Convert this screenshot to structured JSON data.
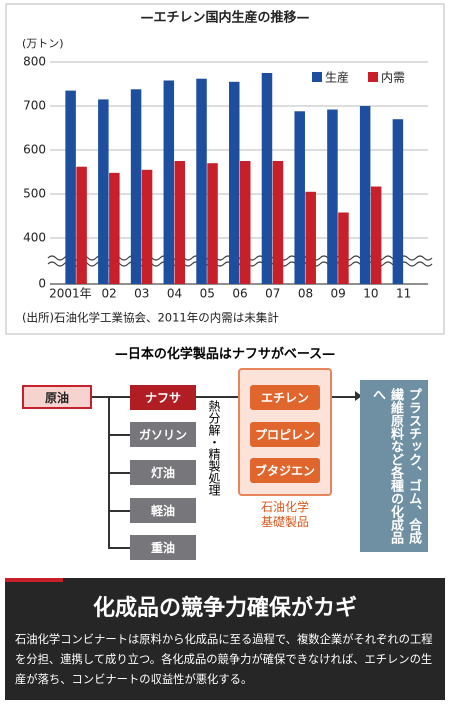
{
  "chart_data": {
    "type": "bar",
    "title": "—エチレン国内生産の推移—",
    "y_label": "(万トン)",
    "source": "(出所)石油化学工業協会、2011年の内需は未集計",
    "categories": [
      "2001年",
      "02",
      "03",
      "04",
      "05",
      "06",
      "07",
      "08",
      "09",
      "10",
      "11"
    ],
    "series": [
      {
        "name": "生産",
        "color": "#1d4f9e",
        "values": [
          735,
          715,
          738,
          758,
          762,
          755,
          775,
          688,
          692,
          700,
          670
        ]
      },
      {
        "name": "内需",
        "color": "#c8202a",
        "values": [
          562,
          548,
          555,
          575,
          570,
          575,
          575,
          505,
          458,
          517,
          null
        ]
      }
    ],
    "ylim": [
      0,
      800
    ],
    "yticks": [
      0,
      400,
      500,
      600,
      700,
      800
    ],
    "axis_break": true,
    "grid": true,
    "legend": "top-right"
  },
  "diagram": {
    "title": "—日本の化学製品はナフサがベース—",
    "crude": "原油",
    "naphtha": "ナフサ",
    "other_products": [
      "ガソリン",
      "灯油",
      "軽油",
      "重油"
    ],
    "process": "熱分解・精製処理",
    "basic_products": [
      "エチレン",
      "プロピレン",
      "ブタジエン"
    ],
    "basic_label": "石油化学基礎製品",
    "output": "プラスチック、ゴム、合成繊維原料など各種の化成品へ"
  },
  "article": {
    "headline": "化成品の競争力確保がカギ",
    "body": "石油化学コンビナートは原料から化成品に至る過程で、複数企業がそれぞれの工程を分担、連携して成り立つ。各化成品の競争力が確保できなければ、エチレンの生産が落ち、コンビナートの収益性が悪化する。"
  }
}
